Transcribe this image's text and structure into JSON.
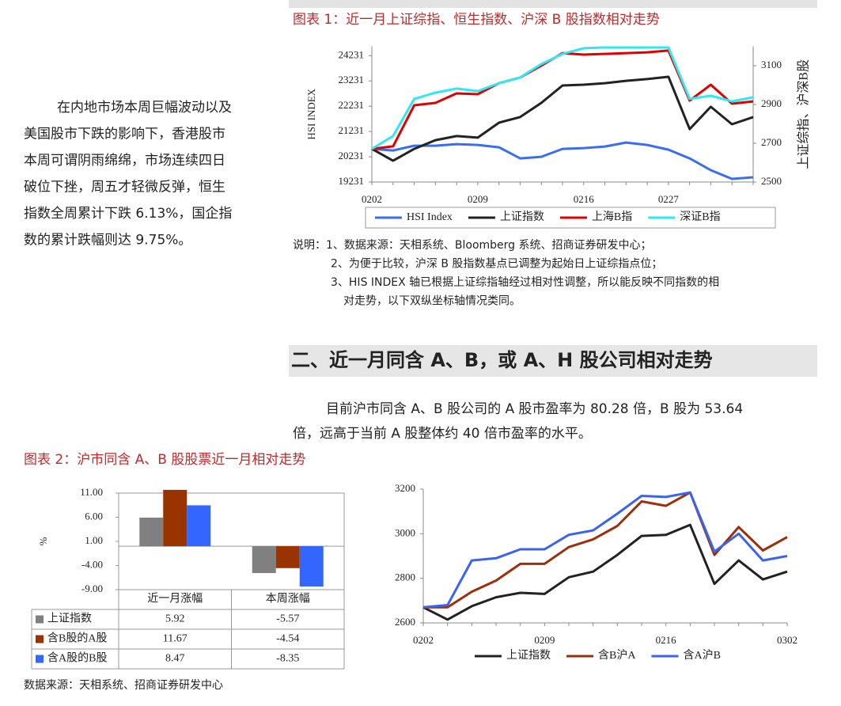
{
  "document": {
    "intro_lines": [
      "在内地市场本周巨幅波动以及",
      "美国股市下跌的影响下，香港股市",
      "本周可谓阴雨绵绵，市场连续四日",
      "破位下挫，周五才轻微反弹，恒生",
      "指数全周累计下跌 6.13%，国企指",
      "数的累计跌幅则达 9.75%。"
    ],
    "section_heading": "二、近一月同含 A、B，或 A、H 股公司相对走势",
    "section_lines": [
      "目前沪市同含 A、B 股公司的 A 股市盈率为 80.28 倍，B 股为 53.64",
      "倍，远高于当前 A 股整体约 40 倍市盈率的水平。"
    ]
  },
  "chart_data": [
    {
      "type": "line",
      "title": "图表 1：近一月上证综指、恒生指数、沪深 B 股指数相对走势",
      "ylabel": "HSI INDEX",
      "y2label": "上证综指、沪深B股",
      "categories": [
        "0202",
        null,
        null,
        null,
        null,
        "0209",
        null,
        null,
        null,
        null,
        "0216",
        null,
        null,
        null,
        "0227",
        null,
        null,
        null,
        null
      ],
      "ylim": [
        19231,
        24600
      ],
      "yticks": [
        19231,
        20231,
        21231,
        22231,
        23231,
        24231
      ],
      "y2lim": [
        2500,
        3200
      ],
      "y2ticks": [
        2500,
        2700,
        2900,
        3100
      ],
      "series": [
        {
          "name": "HSI Index",
          "color": "#3a6df0",
          "values": [
            20543,
            20481,
            20668,
            20668,
            20731,
            20700,
            20606,
            20168,
            20231,
            20543,
            20575,
            20637,
            20793,
            20700,
            20512,
            20168,
            19700,
            19356,
            19418
          ]
        },
        {
          "name": "上证指数",
          "color": "#222222",
          "axis": "y2",
          "values": [
            2671,
            2610,
            2671,
            2716,
            2737,
            2729,
            2806,
            2835,
            2908,
            2998,
            3002,
            3010,
            3022,
            3031,
            3043,
            2773,
            2888,
            2798,
            2835
          ]
        },
        {
          "name": "上海B指",
          "color": "#e00000",
          "axis": "y2",
          "values": [
            2671,
            2684,
            2896,
            2908,
            2957,
            2953,
            3010,
            3039,
            3100,
            3165,
            3157,
            3161,
            3165,
            3169,
            3178,
            2920,
            3002,
            2904,
            2916
          ]
        },
        {
          "name": "深证B指",
          "color": "#2ee8f2",
          "axis": "y2",
          "values": [
            2671,
            2737,
            2929,
            2961,
            2982,
            2969,
            3010,
            3039,
            3108,
            3161,
            3190,
            3194,
            3194,
            3194,
            3194,
            2929,
            2945,
            2916,
            2937
          ]
        }
      ],
      "notes": [
        "说明：1、数据来源：天相系统、Bloomberg 系统、招商证券研发中心；",
        "2、为便于比较，沪深 B 股指数基点已调整为起始日上证综指点位；",
        "3、HIS INDEX 轴已根据上证综指轴经过相对性调整，所以能反映不同指数的相",
        "对走势，以下双纵坐标轴情况类同。"
      ]
    },
    {
      "type": "bar",
      "title": "图表 2：沪市同含 A、B 股股票近一月相对走势",
      "ylabel": "%",
      "categories": [
        "近一月涨幅",
        "本周涨幅"
      ],
      "ylim": [
        -9,
        11
      ],
      "yticks": [
        {
          "value": -9,
          "label": "-9.00"
        },
        {
          "value": -4,
          "label": "-4.00"
        },
        {
          "value": 1,
          "label": "1.00"
        },
        {
          "value": 6,
          "label": "6.00"
        },
        {
          "value": 11,
          "label": "11.00"
        }
      ],
      "series": [
        {
          "name": "上证指数",
          "color": "#808080",
          "values": [
            5.92,
            -5.57
          ]
        },
        {
          "name": "含B股的A股",
          "color": "#993300",
          "values": [
            11.67,
            -4.54
          ]
        },
        {
          "name": "含A股的B股",
          "color": "#3366ff",
          "values": [
            8.47,
            -8.35
          ]
        }
      ],
      "source": "数据来源：天相系统、招商证券研发中心"
    },
    {
      "type": "line",
      "categories": [
        "0202",
        null,
        null,
        null,
        null,
        "0209",
        null,
        null,
        null,
        null,
        "0216",
        null,
        null,
        null,
        null,
        "0302"
      ],
      "ylim": [
        2600,
        3200
      ],
      "yticks": [
        2600,
        2800,
        3000,
        3200
      ],
      "series": [
        {
          "name": "上证指数",
          "color": "#222222",
          "values": [
            2670,
            2615,
            2675,
            2715,
            2735,
            2730,
            2805,
            2830,
            2905,
            2990,
            2995,
            3040,
            2775,
            2880,
            2795,
            2830
          ]
        },
        {
          "name": "含B沪A",
          "color": "#9c2f0c",
          "values": [
            2670,
            2670,
            2740,
            2790,
            2865,
            2865,
            2940,
            2975,
            3035,
            3145,
            3125,
            3185,
            2905,
            3030,
            2925,
            2985
          ]
        },
        {
          "name": "含A沪B",
          "color": "#3b63f0",
          "values": [
            2670,
            2680,
            2880,
            2890,
            2930,
            2930,
            2995,
            3015,
            3090,
            3170,
            3165,
            3185,
            2920,
            3000,
            2880,
            2900
          ]
        }
      ]
    }
  ]
}
